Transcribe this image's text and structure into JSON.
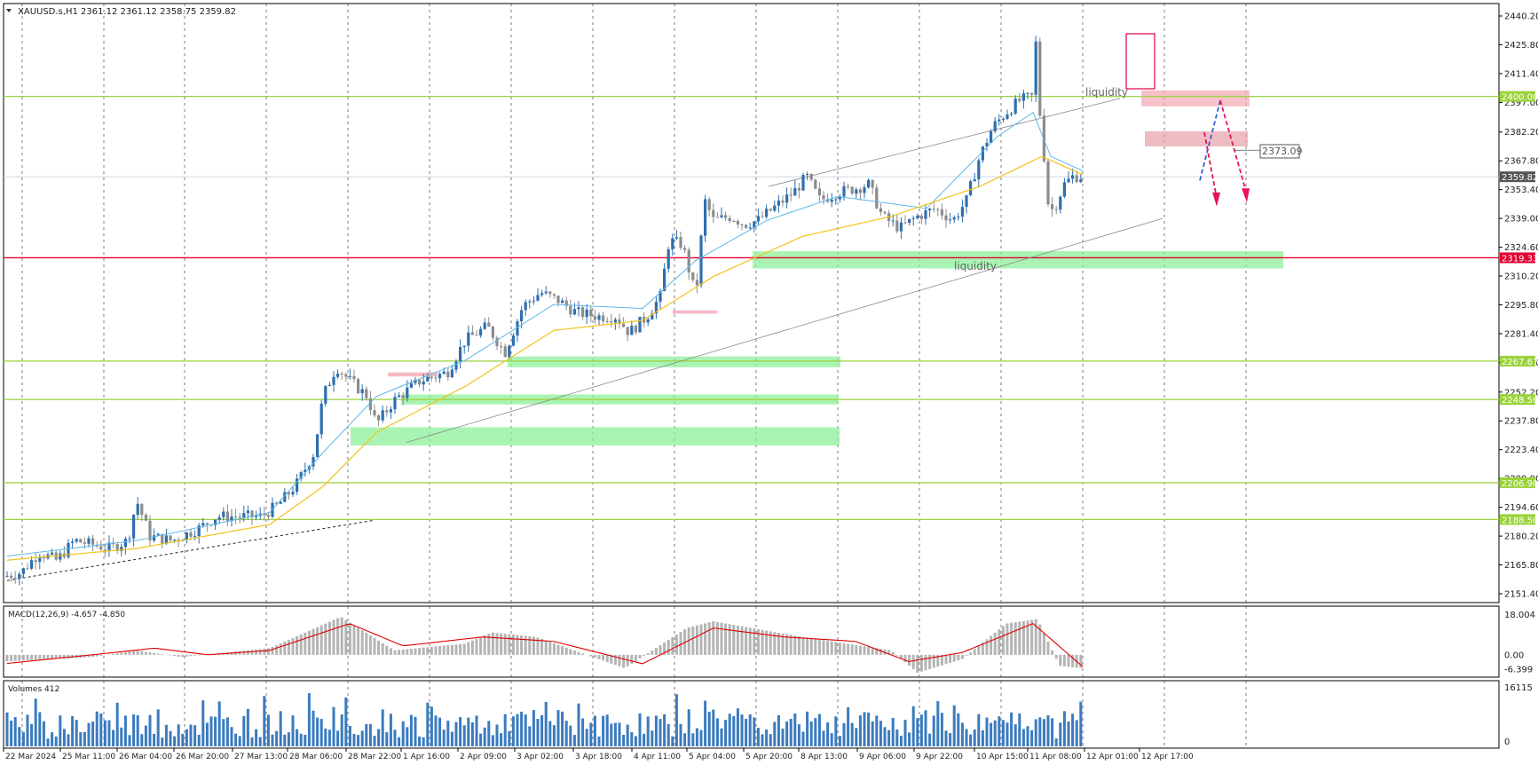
{
  "colors": {
    "bull_candle": "#2e6fb0",
    "bear_candle": "#8c8c8c",
    "ema_fast": "#5bb8e6",
    "ema_slow": "#f2c21b",
    "support_line": "#9bd23b",
    "resistance_red": "#e00030",
    "green_zone": "#8ef09a",
    "pink_zone": "#f3a6b4",
    "macd_hist": "#b4b4b4",
    "macd_signal": "#e00000",
    "volume_bar": "#3a7bbf",
    "arrow": "#e8145a",
    "arrow_blue": "#3a5fcd"
  },
  "header": {
    "title": "XAUUSD.s,H1  2361.12 2361.12 2358.75 2359.82"
  },
  "indicators": {
    "macd_label": "MACD(12,26,9) -4.657 -4.850",
    "volume_label": "Volumes 412"
  },
  "annotations": {
    "liquidity_top": "liquidity",
    "liquidity_bottom": "liquidity",
    "target_price": "2373.09"
  },
  "price_axis": {
    "ticks": [
      "2440.20",
      "2425.80",
      "2411.40",
      "2397.00",
      "2382.20",
      "2367.80",
      "2353.40",
      "2339.00",
      "2324.60",
      "2310.20",
      "2295.80",
      "2281.40",
      "2267.00",
      "2252.20",
      "2237.80",
      "2223.40",
      "2209.00",
      "2194.60",
      "2180.20",
      "2165.80",
      "2151.40"
    ],
    "tagged_levels": [
      {
        "label": "2400.00",
        "color": "#9bd23b"
      },
      {
        "label": "2359.82",
        "color": "#555555"
      },
      {
        "label": "2319.33",
        "color": "#e00030"
      },
      {
        "label": "2267.67",
        "color": "#9bd23b"
      },
      {
        "label": "2248.50",
        "color": "#9bd23b"
      },
      {
        "label": "2206.90",
        "color": "#9bd23b"
      },
      {
        "label": "2188.50",
        "color": "#9bd23b"
      }
    ]
  },
  "macd_axis": {
    "ticks": [
      "18.004",
      "0.00",
      "-6.399"
    ]
  },
  "volume_axis": {
    "ticks": [
      "16115",
      "0"
    ]
  },
  "time_axis": {
    "labels": [
      "22 Mar 2024",
      "25 Mar 11:00",
      "26 Mar 04:00",
      "26 Mar 20:00",
      "27 Mar 13:00",
      "28 Mar 06:00",
      "28 Mar 22:00",
      "1 Apr 16:00",
      "2 Apr 09:00",
      "3 Apr 02:00",
      "3 Apr 18:00",
      "4 Apr 11:00",
      "5 Apr 04:00",
      "5 Apr 20:00",
      "8 Apr 13:00",
      "9 Apr 06:00",
      "9 Apr 22:00",
      "10 Apr 15:00",
      "11 Apr 08:00",
      "12 Apr 01:00",
      "12 Apr 17:00"
    ]
  },
  "chart_data": {
    "type": "candlestick",
    "symbol": "XAUUSD.s",
    "timeframe": "H1",
    "ylim": [
      2151.4,
      2440.2
    ],
    "grid": true,
    "horizontal_levels": [
      2400.0,
      2359.82,
      2319.33,
      2267.67,
      2248.5,
      2206.9,
      2188.5
    ],
    "price_path": [
      [
        0,
        2160
      ],
      [
        20,
        2162
      ],
      [
        40,
        2172
      ],
      [
        60,
        2168
      ],
      [
        80,
        2178
      ],
      [
        100,
        2176
      ],
      [
        120,
        2174
      ],
      [
        140,
        2178
      ],
      [
        150,
        2198
      ],
      [
        165,
        2180
      ],
      [
        190,
        2178
      ],
      [
        220,
        2184
      ],
      [
        240,
        2190
      ],
      [
        260,
        2190
      ],
      [
        290,
        2190
      ],
      [
        310,
        2196
      ],
      [
        330,
        2206
      ],
      [
        350,
        2222
      ],
      [
        360,
        2250
      ],
      [
        375,
        2265
      ],
      [
        390,
        2258
      ],
      [
        410,
        2250
      ],
      [
        420,
        2236
      ],
      [
        440,
        2248
      ],
      [
        470,
        2258
      ],
      [
        500,
        2262
      ],
      [
        520,
        2278
      ],
      [
        545,
        2285
      ],
      [
        565,
        2272
      ],
      [
        585,
        2295
      ],
      [
        605,
        2302
      ],
      [
        625,
        2298
      ],
      [
        645,
        2292
      ],
      [
        670,
        2290
      ],
      [
        690,
        2290
      ],
      [
        705,
        2282
      ],
      [
        725,
        2290
      ],
      [
        740,
        2300
      ],
      [
        750,
        2328
      ],
      [
        765,
        2326
      ],
      [
        780,
        2300
      ],
      [
        790,
        2348
      ],
      [
        800,
        2338
      ],
      [
        820,
        2340
      ],
      [
        835,
        2336
      ],
      [
        850,
        2338
      ],
      [
        870,
        2345
      ],
      [
        890,
        2352
      ],
      [
        905,
        2360
      ],
      [
        920,
        2348
      ],
      [
        940,
        2352
      ],
      [
        960,
        2354
      ],
      [
        975,
        2356
      ],
      [
        990,
        2340
      ],
      [
        1010,
        2334
      ],
      [
        1030,
        2340
      ],
      [
        1050,
        2344
      ],
      [
        1070,
        2338
      ],
      [
        1085,
        2348
      ],
      [
        1100,
        2370
      ],
      [
        1115,
        2385
      ],
      [
        1130,
        2392
      ],
      [
        1145,
        2398
      ],
      [
        1160,
        2400
      ],
      [
        1163,
        2428
      ],
      [
        1167,
        2395
      ],
      [
        1172,
        2372
      ],
      [
        1178,
        2342
      ],
      [
        1185,
        2345
      ],
      [
        1195,
        2356
      ],
      [
        1205,
        2360
      ],
      [
        1218,
        2360
      ]
    ],
    "ema_fast_path": [
      [
        0,
        2170
      ],
      [
        150,
        2178
      ],
      [
        300,
        2192
      ],
      [
        360,
        2222
      ],
      [
        420,
        2250
      ],
      [
        520,
        2268
      ],
      [
        620,
        2296
      ],
      [
        720,
        2294
      ],
      [
        780,
        2318
      ],
      [
        860,
        2338
      ],
      [
        940,
        2350
      ],
      [
        1040,
        2344
      ],
      [
        1120,
        2380
      ],
      [
        1160,
        2392
      ],
      [
        1180,
        2370
      ],
      [
        1220,
        2362
      ]
    ],
    "ema_slow_path": [
      [
        0,
        2168
      ],
      [
        150,
        2174
      ],
      [
        300,
        2186
      ],
      [
        360,
        2205
      ],
      [
        420,
        2232
      ],
      [
        520,
        2255
      ],
      [
        620,
        2283
      ],
      [
        720,
        2288
      ],
      [
        800,
        2310
      ],
      [
        900,
        2330
      ],
      [
        1000,
        2340
      ],
      [
        1100,
        2355
      ],
      [
        1170,
        2370
      ],
      [
        1220,
        2360
      ]
    ],
    "macd_hist_path": [
      [
        0,
        -3
      ],
      [
        100,
        -1
      ],
      [
        150,
        2
      ],
      [
        200,
        -1
      ],
      [
        300,
        3
      ],
      [
        380,
        17
      ],
      [
        440,
        2
      ],
      [
        520,
        5
      ],
      [
        550,
        10
      ],
      [
        600,
        8
      ],
      [
        700,
        -6
      ],
      [
        770,
        12
      ],
      [
        800,
        15
      ],
      [
        900,
        8
      ],
      [
        1000,
        2
      ],
      [
        1030,
        -8
      ],
      [
        1080,
        -2
      ],
      [
        1130,
        14
      ],
      [
        1165,
        16
      ],
      [
        1190,
        -5
      ],
      [
        1218,
        -6
      ]
    ],
    "macd_signal_path": [
      [
        0,
        -4
      ],
      [
        100,
        0
      ],
      [
        170,
        3
      ],
      [
        230,
        0
      ],
      [
        300,
        2
      ],
      [
        390,
        14
      ],
      [
        450,
        4
      ],
      [
        540,
        8
      ],
      [
        620,
        6
      ],
      [
        720,
        -4
      ],
      [
        800,
        12
      ],
      [
        880,
        8
      ],
      [
        960,
        6
      ],
      [
        1020,
        -3
      ],
      [
        1080,
        1
      ],
      [
        1160,
        14
      ],
      [
        1218,
        -6
      ]
    ]
  }
}
